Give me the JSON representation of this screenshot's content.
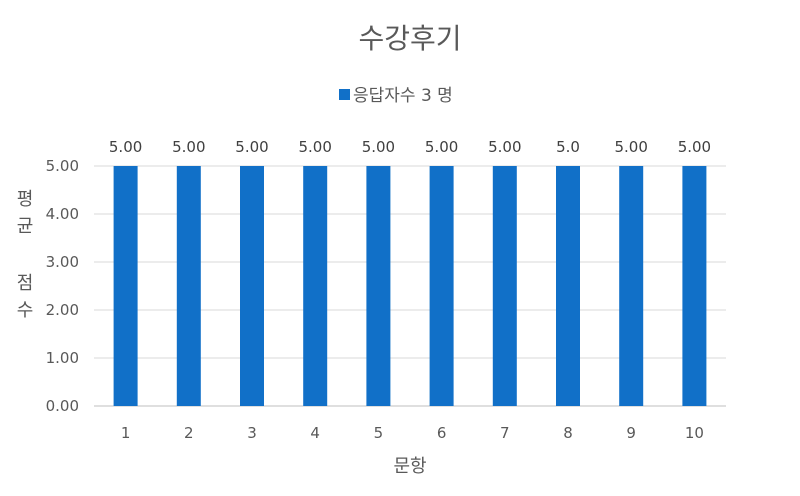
{
  "chart_data": {
    "type": "bar",
    "title": "수강후기",
    "legend": {
      "label": "응답자수 3 명",
      "position": "top"
    },
    "categories": [
      "1",
      "2",
      "3",
      "4",
      "5",
      "6",
      "7",
      "8",
      "9",
      "10"
    ],
    "series": [
      {
        "name": "응답자수 3 명",
        "values": [
          5,
          5,
          5,
          5,
          5,
          5,
          5,
          5,
          5,
          5
        ],
        "data_labels": [
          "5.00",
          "5.00",
          "5.00",
          "5.00",
          "5.00",
          "5.00",
          "5.00",
          "5.0",
          "5.00",
          "5.00"
        ]
      }
    ],
    "xlabel": "문항",
    "ylabel": "평균 점수",
    "ylim": [
      0,
      5
    ],
    "yticks": [
      "0.00",
      "1.00",
      "2.00",
      "3.00",
      "4.00",
      "5.00"
    ],
    "grid": true,
    "colors": {
      "bar": "#1170c8"
    }
  }
}
